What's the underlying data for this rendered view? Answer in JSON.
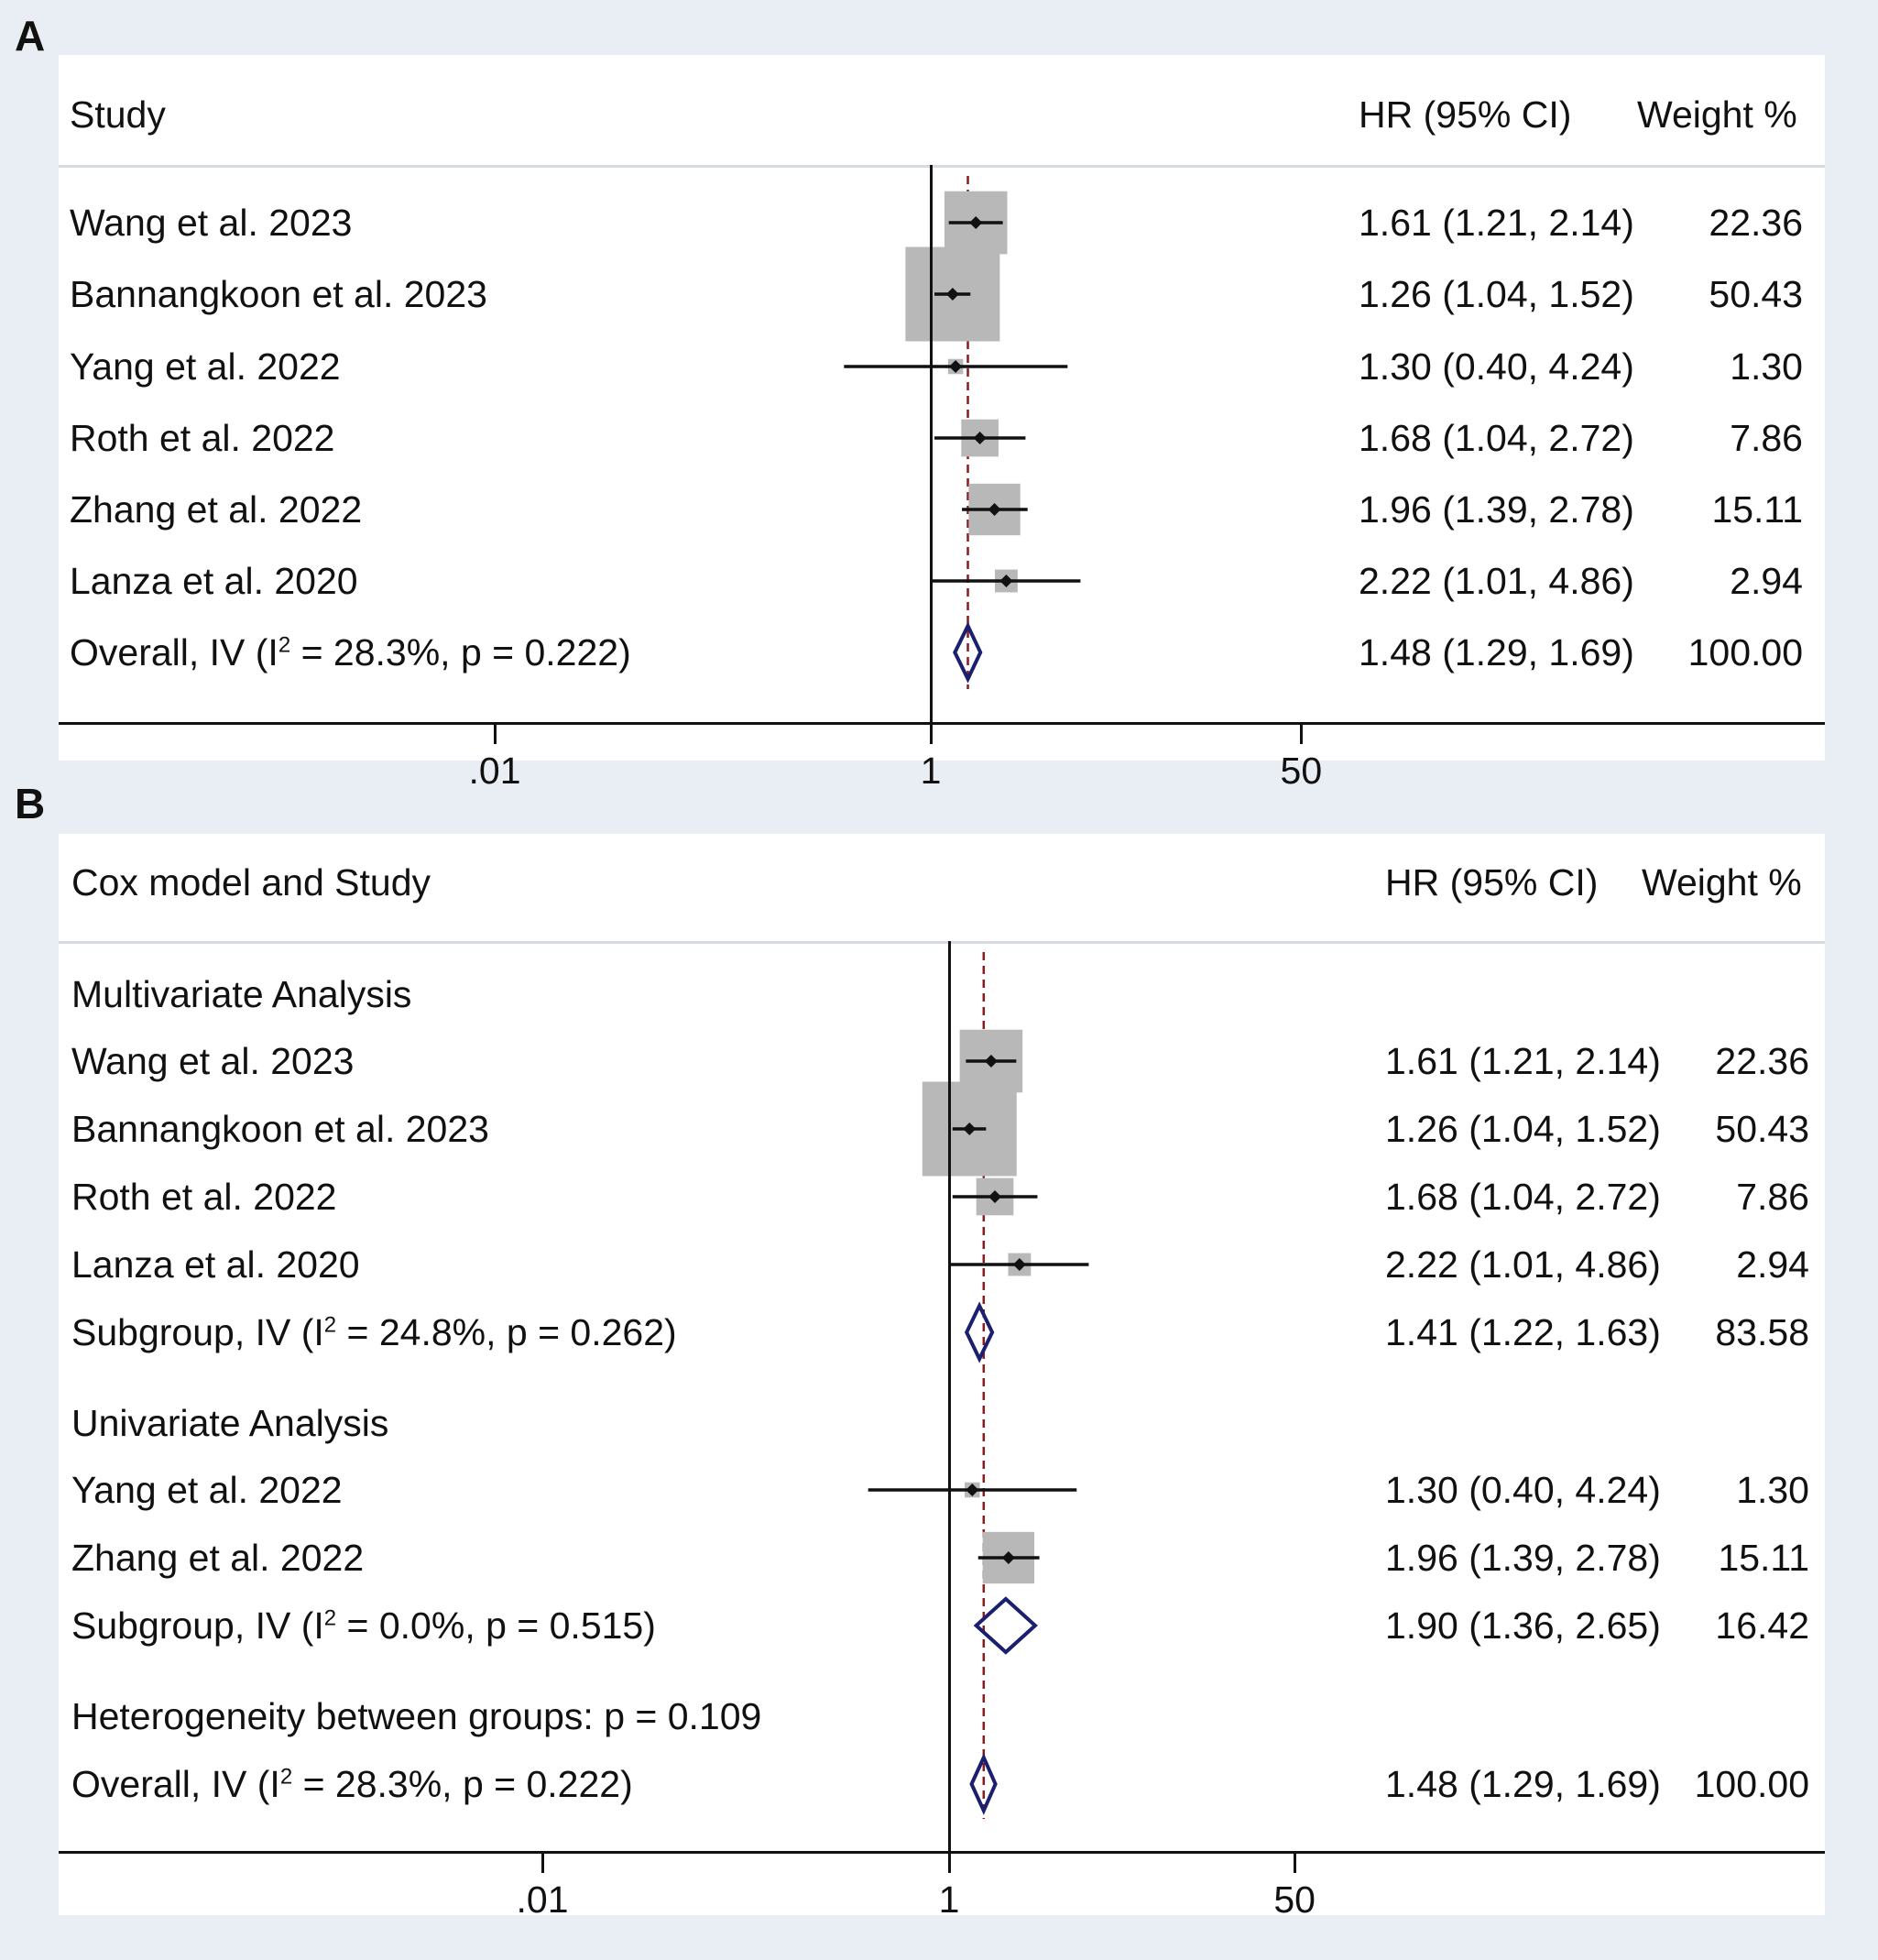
{
  "chart_data": [
    {
      "panel": "A",
      "type": "forest",
      "header": {
        "study": "Study",
        "hr": "HR (95% CI)",
        "weight": "Weight %"
      },
      "x_scale": "log",
      "x_ticks": [
        {
          "value": 0.01,
          "label": ".01"
        },
        {
          "value": 1,
          "label": "1"
        },
        {
          "value": 50,
          "label": "50"
        }
      ],
      "null_line": 1,
      "overall_line": 1.48,
      "rows": [
        {
          "kind": "study",
          "label": "Wang et al. 2023",
          "hr": 1.61,
          "lo": 1.21,
          "hi": 2.14,
          "weight": 22.36,
          "hr_text": "1.61 (1.21, 2.14)",
          "weight_text": "22.36"
        },
        {
          "kind": "study",
          "label": "Bannangkoon et al. 2023",
          "hr": 1.26,
          "lo": 1.04,
          "hi": 1.52,
          "weight": 50.43,
          "hr_text": "1.26 (1.04, 1.52)",
          "weight_text": "50.43"
        },
        {
          "kind": "study",
          "label": "Yang et al. 2022",
          "hr": 1.3,
          "lo": 0.4,
          "hi": 4.24,
          "weight": 1.3,
          "hr_text": "1.30 (0.40, 4.24)",
          "weight_text": "1.30"
        },
        {
          "kind": "study",
          "label": "Roth et al. 2022",
          "hr": 1.68,
          "lo": 1.04,
          "hi": 2.72,
          "weight": 7.86,
          "hr_text": "1.68 (1.04, 2.72)",
          "weight_text": "7.86"
        },
        {
          "kind": "study",
          "label": "Zhang et al. 2022",
          "hr": 1.96,
          "lo": 1.39,
          "hi": 2.78,
          "weight": 15.11,
          "hr_text": "1.96 (1.39, 2.78)",
          "weight_text": "15.11"
        },
        {
          "kind": "study",
          "label": "Lanza et al. 2020",
          "hr": 2.22,
          "lo": 1.01,
          "hi": 4.86,
          "weight": 2.94,
          "hr_text": "2.22 (1.01, 4.86)",
          "weight_text": "2.94"
        },
        {
          "kind": "pooled",
          "label_pre": "Overall, IV (I",
          "label_sup": "2",
          "label_post": " = 28.3%, p = 0.222)",
          "hr": 1.48,
          "lo": 1.29,
          "hi": 1.69,
          "weight": 100.0,
          "hr_text": "1.48 (1.29, 1.69)",
          "weight_text": "100.00"
        }
      ]
    },
    {
      "panel": "B",
      "type": "forest",
      "header": {
        "study": "Cox model and Study",
        "hr": "HR (95% CI)",
        "weight": "Weight %"
      },
      "x_scale": "log",
      "x_ticks": [
        {
          "value": 0.01,
          "label": ".01"
        },
        {
          "value": 1,
          "label": "1"
        },
        {
          "value": 50,
          "label": "50"
        }
      ],
      "null_line": 1,
      "overall_line": 1.48,
      "rows": [
        {
          "kind": "group",
          "label": "Multivariate Analysis"
        },
        {
          "kind": "study",
          "label": "Wang et al. 2023",
          "hr": 1.61,
          "lo": 1.21,
          "hi": 2.14,
          "weight": 22.36,
          "hr_text": "1.61 (1.21, 2.14)",
          "weight_text": "22.36"
        },
        {
          "kind": "study",
          "label": "Bannangkoon et al. 2023",
          "hr": 1.26,
          "lo": 1.04,
          "hi": 1.52,
          "weight": 50.43,
          "hr_text": "1.26 (1.04, 1.52)",
          "weight_text": "50.43"
        },
        {
          "kind": "study",
          "label": "Roth et al. 2022",
          "hr": 1.68,
          "lo": 1.04,
          "hi": 2.72,
          "weight": 7.86,
          "hr_text": "1.68 (1.04, 2.72)",
          "weight_text": "7.86"
        },
        {
          "kind": "study",
          "label": "Lanza et al. 2020",
          "hr": 2.22,
          "lo": 1.01,
          "hi": 4.86,
          "weight": 2.94,
          "hr_text": "2.22 (1.01, 4.86)",
          "weight_text": "2.94"
        },
        {
          "kind": "pooled",
          "label_pre": "Subgroup, IV (I",
          "label_sup": "2",
          "label_post": " = 24.8%, p = 0.262)",
          "hr": 1.41,
          "lo": 1.22,
          "hi": 1.63,
          "weight": 83.58,
          "hr_text": "1.41 (1.22, 1.63)",
          "weight_text": "83.58"
        },
        {
          "kind": "group",
          "label": "Univariate Analysis"
        },
        {
          "kind": "study",
          "label": "Yang et al. 2022",
          "hr": 1.3,
          "lo": 0.4,
          "hi": 4.24,
          "weight": 1.3,
          "hr_text": "1.30 (0.40, 4.24)",
          "weight_text": "1.30"
        },
        {
          "kind": "study",
          "label": "Zhang et al. 2022",
          "hr": 1.96,
          "lo": 1.39,
          "hi": 2.78,
          "weight": 15.11,
          "hr_text": "1.96 (1.39, 2.78)",
          "weight_text": "15.11"
        },
        {
          "kind": "pooled",
          "label_pre": "Subgroup, IV (I",
          "label_sup": "2",
          "label_post": " = 0.0%, p = 0.515)",
          "hr": 1.9,
          "lo": 1.36,
          "hi": 2.65,
          "weight": 16.42,
          "hr_text": "1.90 (1.36, 2.65)",
          "weight_text": "16.42"
        },
        {
          "kind": "note",
          "label": "Heterogeneity between groups: p = 0.109"
        },
        {
          "kind": "pooled",
          "label_pre": "Overall, IV (I",
          "label_sup": "2",
          "label_post": " = 28.3%, p = 0.222)",
          "hr": 1.48,
          "lo": 1.29,
          "hi": 1.69,
          "weight": 100.0,
          "hr_text": "1.48 (1.29, 1.69)",
          "weight_text": "100.00"
        }
      ]
    }
  ],
  "colors": {
    "box": "#b8b8b8",
    "diamond": "#1a1f6e",
    "reference": "#8b1a1a",
    "ink": "#111111"
  }
}
